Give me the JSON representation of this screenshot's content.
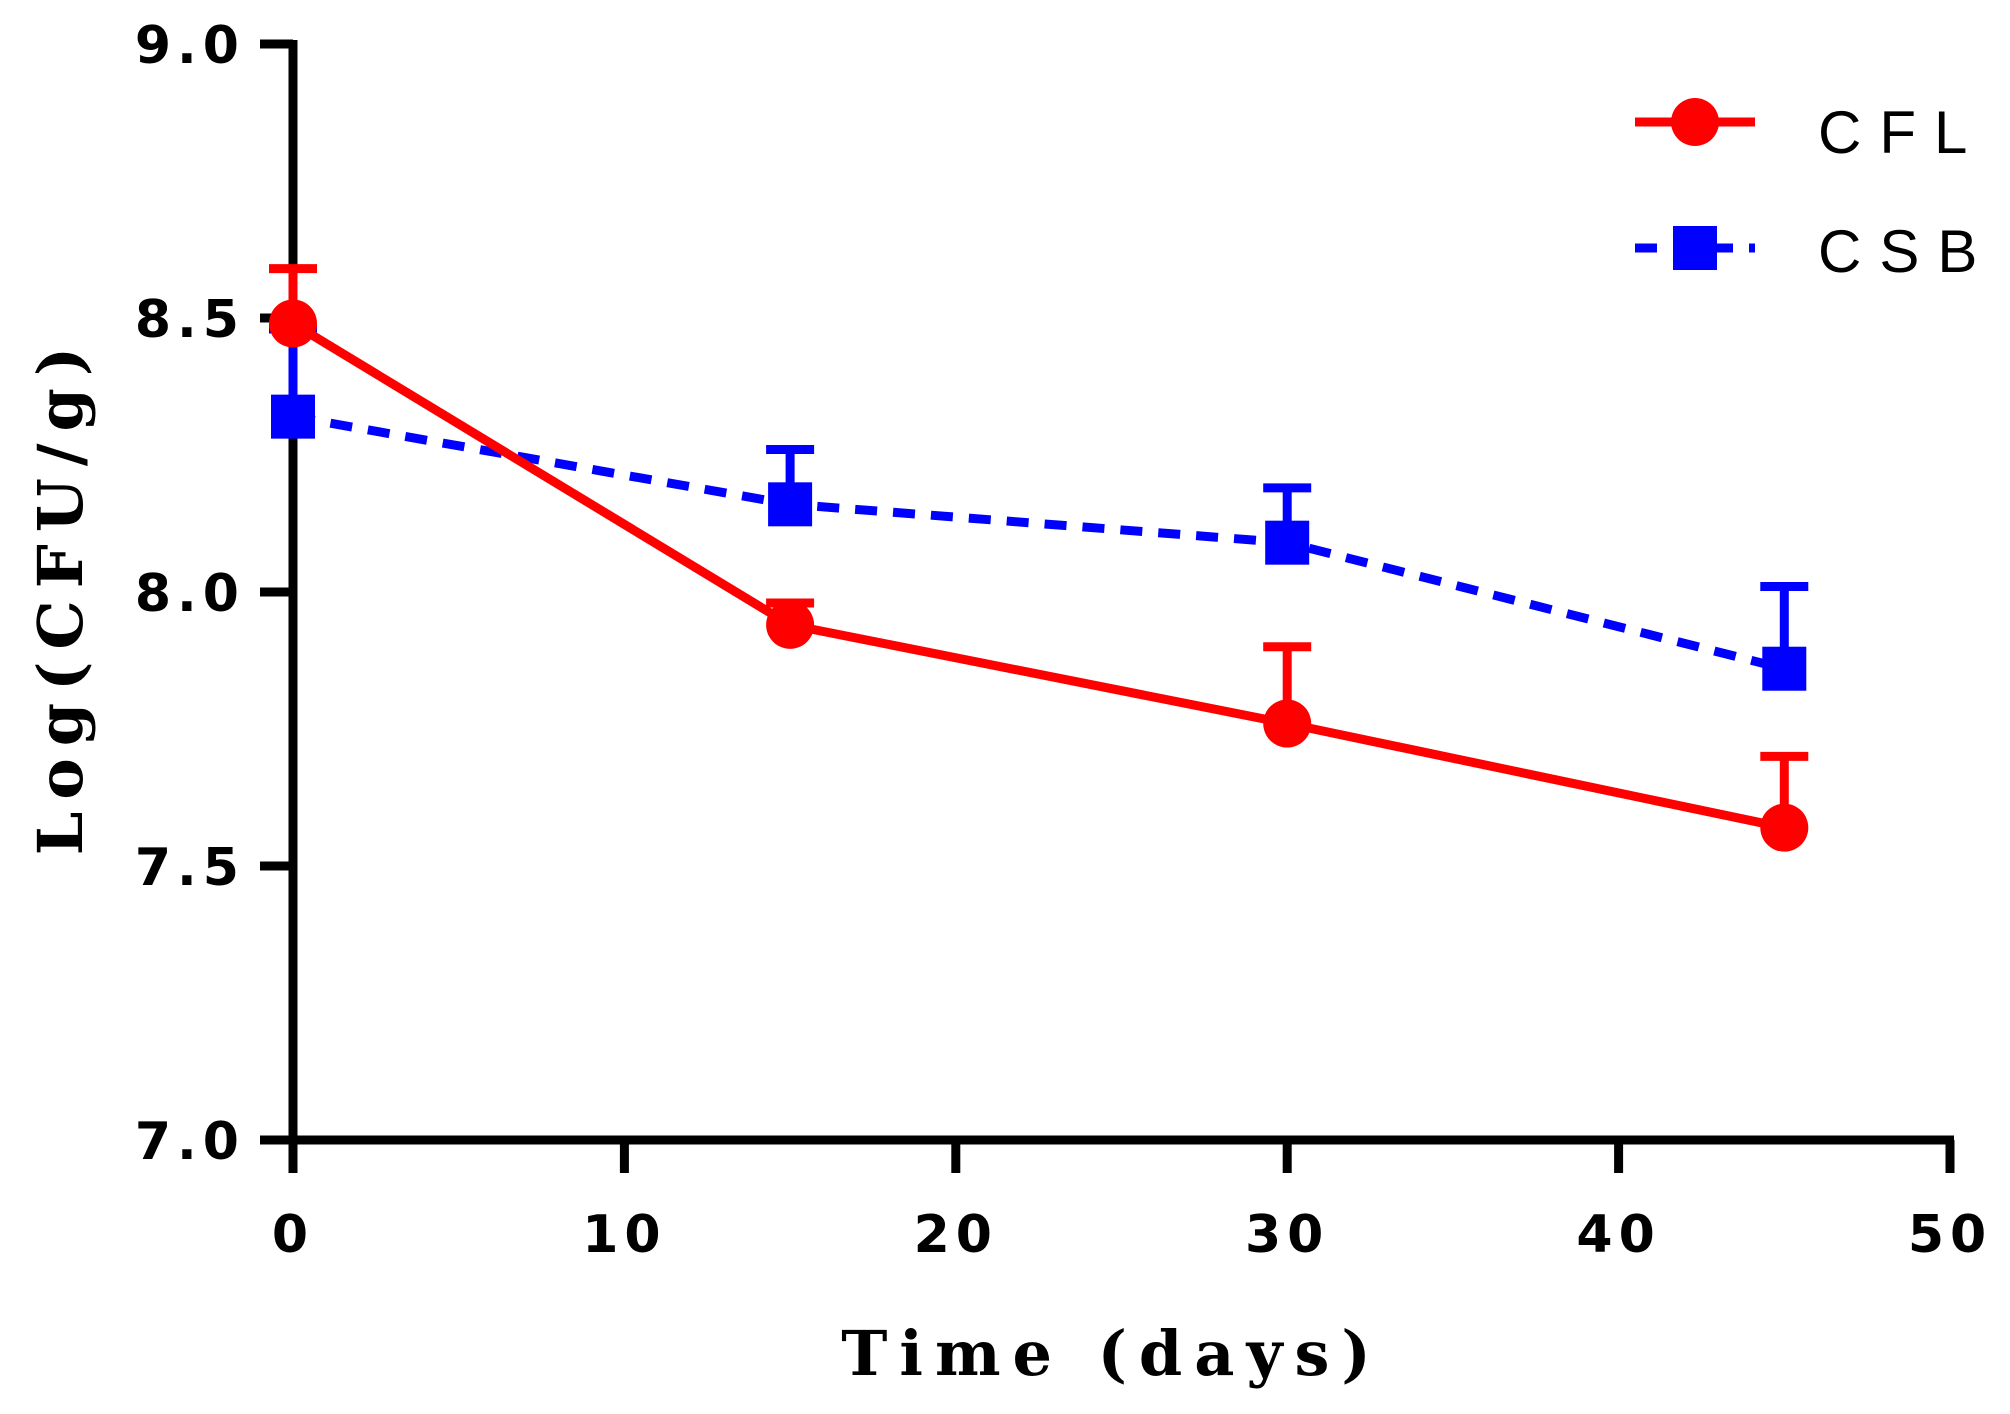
{
  "chart_data": {
    "type": "line",
    "title": "",
    "xlabel": "Time (days)",
    "ylabel": "Log(CFU/g)",
    "xlim": [
      0,
      50
    ],
    "ylim": [
      7.0,
      9.0
    ],
    "xticks": [
      0,
      10,
      20,
      30,
      40,
      50
    ],
    "yticks": [
      7.0,
      7.5,
      8.0,
      8.5,
      9.0
    ],
    "xtick_labels": [
      "0",
      "10",
      "20",
      "30",
      "40",
      "50"
    ],
    "ytick_labels": [
      "7.0",
      "7.5",
      "8.0",
      "8.5",
      "9.0"
    ],
    "grid": false,
    "legend_position": "top-right",
    "series": [
      {
        "name": "CFL",
        "color": "#ff0000",
        "line_style": "solid",
        "marker": "circle",
        "x": [
          0,
          15,
          30,
          45
        ],
        "values": [
          8.49,
          7.94,
          7.76,
          7.57
        ],
        "error_upper": [
          0.1,
          0.04,
          0.14,
          0.13
        ]
      },
      {
        "name": "CSB",
        "color": "#0000ff",
        "line_style": "dashed",
        "marker": "square",
        "x": [
          0,
          15,
          30,
          45
        ],
        "values": [
          8.32,
          8.16,
          8.09,
          7.86
        ],
        "error_upper": [
          0.16,
          0.1,
          0.1,
          0.15
        ]
      }
    ]
  }
}
